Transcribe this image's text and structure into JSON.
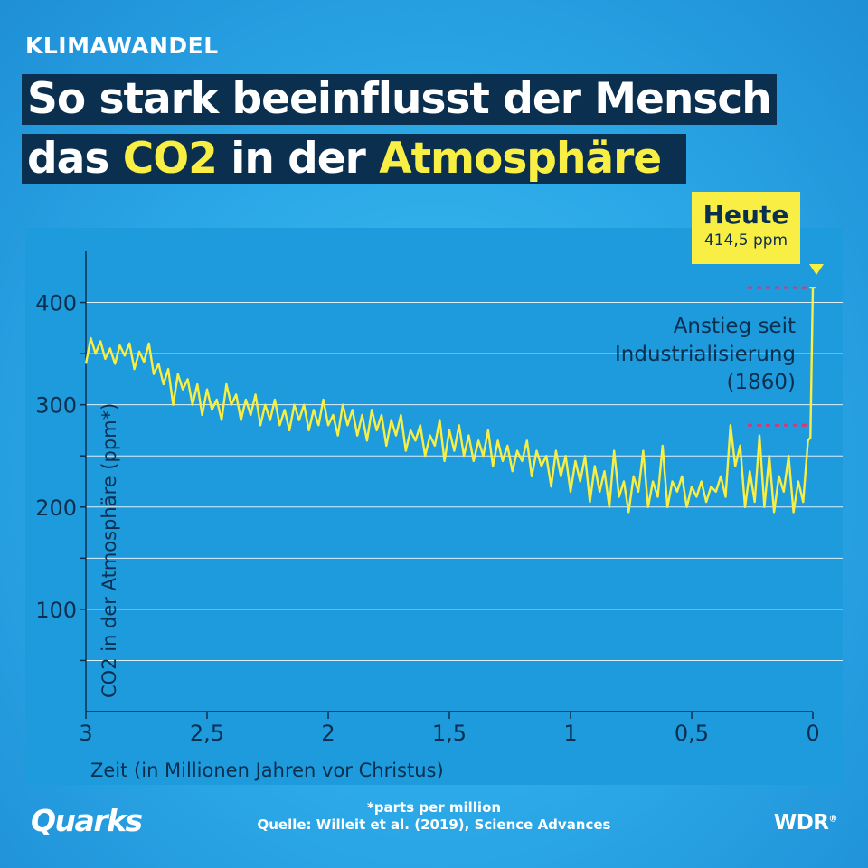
{
  "kicker": "KLIMAWANDEL",
  "headline": {
    "line1": "So stark beeinflusst der Mensch",
    "line2_prefix": "das ",
    "line2_co2": "CO2",
    "line2_mid": " in der ",
    "line2_atm": "Atmosphäre"
  },
  "callout": {
    "title": "Heute",
    "value": "414,5 ppm"
  },
  "annotation": "Anstieg seit\nIndustrialisierung\n(1860)",
  "footnote": {
    "line1": "*parts per million",
    "line2": "Quelle: Willeit et al. (2019), Science Advances"
  },
  "brand": {
    "left": "Quarks",
    "right": "WDR",
    "right_mark": "®"
  },
  "colors": {
    "line": "#f8ee44",
    "axis": "#0b2f4e",
    "grid": "#ffffff",
    "accent_dashes": "#d23a7a",
    "panel": "#1e9bdc"
  },
  "chart_data": {
    "type": "line",
    "title": "",
    "xlabel": "Zeit (in Millionen Jahren vor Christus)",
    "ylabel": "CO2 in der Atmosphäre (ppm*)",
    "x_reversed": true,
    "xlim": [
      3,
      0
    ],
    "ylim": [
      0,
      450
    ],
    "x_ticks": [
      3,
      2.5,
      2,
      1.5,
      1,
      0.5,
      0
    ],
    "x_tick_labels": [
      "3",
      "2,5",
      "2",
      "1,5",
      "1",
      "0,5",
      "0"
    ],
    "y_ticks": [
      100,
      200,
      300,
      400
    ],
    "y_tick_labels": [
      "100",
      "200",
      "300",
      "400"
    ],
    "grid": true,
    "series": [
      {
        "x": [
          3.0,
          2.98,
          2.96,
          2.94,
          2.92,
          2.9,
          2.88,
          2.86,
          2.84,
          2.82,
          2.8,
          2.78,
          2.76,
          2.74,
          2.72,
          2.7,
          2.68,
          2.66,
          2.64,
          2.62,
          2.6,
          2.58,
          2.56,
          2.54,
          2.52,
          2.5,
          2.48,
          2.46,
          2.44,
          2.42,
          2.4,
          2.38,
          2.36,
          2.34,
          2.32,
          2.3,
          2.28,
          2.26,
          2.24,
          2.22,
          2.2,
          2.18,
          2.16,
          2.14,
          2.12,
          2.1,
          2.08,
          2.06,
          2.04,
          2.02,
          2.0,
          1.98,
          1.96,
          1.94,
          1.92,
          1.9,
          1.88,
          1.86,
          1.84,
          1.82,
          1.8,
          1.78,
          1.76,
          1.74,
          1.72,
          1.7,
          1.68,
          1.66,
          1.64,
          1.62,
          1.6,
          1.58,
          1.56,
          1.54,
          1.52,
          1.5,
          1.48,
          1.46,
          1.44,
          1.42,
          1.4,
          1.38,
          1.36,
          1.34,
          1.32,
          1.3,
          1.28,
          1.26,
          1.24,
          1.22,
          1.2,
          1.18,
          1.16,
          1.14,
          1.12,
          1.1,
          1.08,
          1.06,
          1.04,
          1.02,
          1.0,
          0.98,
          0.96,
          0.94,
          0.92,
          0.9,
          0.88,
          0.86,
          0.84,
          0.82,
          0.8,
          0.78,
          0.76,
          0.74,
          0.72,
          0.7,
          0.68,
          0.66,
          0.64,
          0.62,
          0.6,
          0.58,
          0.56,
          0.54,
          0.52,
          0.5,
          0.48,
          0.46,
          0.44,
          0.42,
          0.4,
          0.38,
          0.36,
          0.34,
          0.32,
          0.3,
          0.28,
          0.26,
          0.24,
          0.22,
          0.2,
          0.18,
          0.16,
          0.14,
          0.12,
          0.1,
          0.08,
          0.06,
          0.04,
          0.02,
          0.01,
          0.0
        ],
        "y": [
          340,
          365,
          350,
          362,
          345,
          355,
          340,
          358,
          348,
          360,
          335,
          352,
          342,
          360,
          330,
          340,
          320,
          335,
          300,
          330,
          315,
          325,
          300,
          320,
          290,
          315,
          295,
          305,
          285,
          320,
          300,
          310,
          285,
          305,
          290,
          310,
          280,
          300,
          285,
          305,
          280,
          295,
          275,
          300,
          285,
          300,
          275,
          295,
          280,
          305,
          280,
          290,
          270,
          300,
          280,
          295,
          270,
          290,
          265,
          295,
          275,
          290,
          260,
          285,
          270,
          290,
          255,
          275,
          265,
          280,
          250,
          270,
          260,
          285,
          245,
          275,
          255,
          280,
          250,
          270,
          245,
          265,
          250,
          275,
          240,
          265,
          245,
          260,
          235,
          255,
          245,
          265,
          230,
          255,
          240,
          250,
          220,
          255,
          230,
          250,
          215,
          245,
          225,
          250,
          205,
          240,
          215,
          235,
          200,
          255,
          210,
          225,
          195,
          230,
          215,
          255,
          200,
          225,
          210,
          260,
          200,
          225,
          215,
          230,
          200,
          220,
          210,
          225,
          205,
          220,
          215,
          230,
          210,
          280,
          240,
          260,
          200,
          235,
          205,
          270,
          200,
          250,
          195,
          230,
          215,
          250,
          195,
          225,
          205,
          265,
          268,
          414.5
        ]
      }
    ],
    "annotations": [
      {
        "text": "Heute",
        "value": "414,5 ppm",
        "x": 0,
        "y": 414.5
      },
      {
        "text": "Anstieg seit Industrialisierung (1860)",
        "y_from": 280,
        "y_to": 414.5
      }
    ]
  }
}
